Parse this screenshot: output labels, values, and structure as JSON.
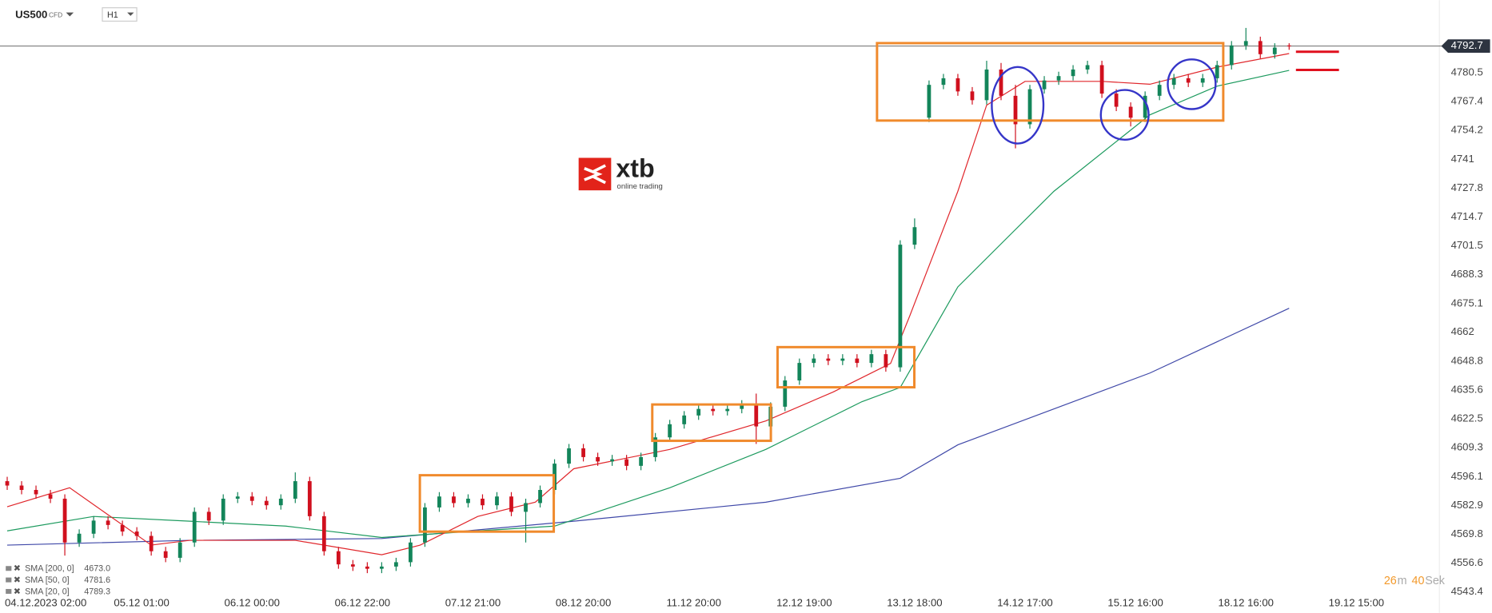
{
  "header": {
    "symbol": "US500",
    "kind": "CFD",
    "interval": "H1"
  },
  "logo": {
    "brand": "xtb",
    "tagline": "online trading"
  },
  "timer": {
    "minutes": "26",
    "minutes_unit": "m",
    "seconds": "40",
    "seconds_unit": "Sek"
  },
  "chart_data": {
    "type": "candlestick",
    "up_color": "#13855a",
    "down_color": "#d0101e",
    "xlim": [
      -6.5,
      292.3
    ],
    "ylim": [
      4541.7,
      4813.7
    ],
    "xticks": [
      {
        "value": 0,
        "label": "04.12.2023  02:00"
      },
      {
        "value": 23,
        "label": "05.12  01:00"
      },
      {
        "value": 46,
        "label": "06.12  00:00"
      },
      {
        "value": 69,
        "label": "06.12  22:00"
      },
      {
        "value": 92,
        "label": "07.12  21:00"
      },
      {
        "value": 115,
        "label": "08.12  20:00"
      },
      {
        "value": 138,
        "label": "11.12  20:00"
      },
      {
        "value": 161,
        "label": "12.12  19:00"
      },
      {
        "value": 184,
        "label": "13.12  18:00"
      },
      {
        "value": 207,
        "label": "14.12  17:00"
      },
      {
        "value": 230,
        "label": "15.12  16:00"
      },
      {
        "value": 253,
        "label": "18.12  16:00"
      },
      {
        "value": 276,
        "label": "19.12  15:00"
      }
    ],
    "yticks": [
      4543.4,
      4556.6,
      4569.8,
      4582.9,
      4596.1,
      4609.3,
      4622.5,
      4635.6,
      4648.8,
      4662.0,
      4675.1,
      4688.3,
      4701.5,
      4714.7,
      4727.8,
      4741.0,
      4754.2,
      4767.4,
      4780.5
    ],
    "last_price": 4792.7,
    "x": [
      -5,
      -2,
      1,
      4,
      7,
      10,
      13,
      16,
      19,
      22,
      25,
      28,
      31,
      34,
      37,
      40,
      43,
      46,
      49,
      52,
      55,
      58,
      61,
      64,
      67,
      70,
      73,
      76,
      79,
      82,
      85,
      88,
      91,
      94,
      97,
      100,
      103,
      106,
      109,
      112,
      115,
      118,
      121,
      124,
      127,
      130,
      133,
      136,
      139,
      142,
      145,
      148,
      151,
      154,
      157,
      160,
      163,
      166,
      169,
      172,
      175,
      178,
      181,
      184,
      187,
      190,
      193,
      196,
      199,
      202,
      205,
      208,
      211,
      214,
      217,
      220,
      223,
      226,
      229,
      232,
      235,
      238,
      241,
      244,
      247,
      250,
      253,
      256,
      259,
      262
    ],
    "open": [
      4594,
      4592,
      4590,
      4588,
      4586,
      4566,
      4570,
      4576,
      4574,
      4571,
      4569,
      4562,
      4559,
      4566,
      4580,
      4576,
      4586,
      4587,
      4585,
      4583,
      4586,
      4594,
      4578,
      4562,
      4556,
      4555,
      4554,
      4555,
      4557,
      4566,
      4582,
      4587,
      4584,
      4586,
      4583,
      4587,
      4580,
      4584,
      4590,
      4602,
      4609,
      4605,
      4603,
      4604,
      4601,
      4605,
      4614,
      4620,
      4624,
      4627,
      4626,
      4627,
      4629,
      4619,
      4628,
      4640,
      4648,
      4650,
      4649,
      4650,
      4648,
      4652,
      4646,
      4702,
      4760,
      4775,
      4778,
      4772,
      4768,
      4782,
      4770,
      4757,
      4773,
      4777,
      4779,
      4782,
      4784,
      4771,
      4765,
      4760,
      4770,
      4775,
      4778,
      4776,
      4778,
      4784,
      4793,
      4795,
      4789,
      4793
    ],
    "high": [
      4596,
      4594,
      4592,
      4590,
      4588,
      4572,
      4578,
      4578,
      4576,
      4573,
      4571,
      4564,
      4568,
      4582,
      4582,
      4588,
      4589,
      4589,
      4587,
      4588,
      4598,
      4596,
      4580,
      4564,
      4558,
      4557,
      4557,
      4559,
      4568,
      4584,
      4589,
      4589,
      4588,
      4588,
      4589,
      4589,
      4586,
      4592,
      4604,
      4611,
      4611,
      4607,
      4606,
      4606,
      4607,
      4616,
      4622,
      4626,
      4629,
      4629,
      4629,
      4631,
      4634,
      4630,
      4642,
      4650,
      4652,
      4652,
      4652,
      4652,
      4654,
      4654,
      4704,
      4714,
      4777,
      4780,
      4780,
      4774,
      4786,
      4785,
      4775,
      4775,
      4779,
      4781,
      4784,
      4786,
      4786,
      4773,
      4767,
      4772,
      4777,
      4780,
      4780,
      4780,
      4786,
      4795,
      4801,
      4797,
      4794,
      4794
    ],
    "low": [
      4590,
      4588,
      4586,
      4584,
      4560,
      4564,
      4568,
      4572,
      4569,
      4567,
      4560,
      4557,
      4557,
      4564,
      4574,
      4574,
      4584,
      4583,
      4581,
      4581,
      4584,
      4576,
      4560,
      4554,
      4553,
      4552,
      4552,
      4553,
      4555,
      4564,
      4580,
      4582,
      4582,
      4581,
      4581,
      4578,
      4566,
      4582,
      4588,
      4600,
      4603,
      4601,
      4601,
      4599,
      4599,
      4603,
      4612,
      4618,
      4622,
      4624,
      4624,
      4625,
      4611,
      4617,
      4626,
      4638,
      4646,
      4647,
      4647,
      4646,
      4646,
      4644,
      4644,
      4700,
      4758,
      4773,
      4770,
      4766,
      4766,
      4768,
      4746,
      4755,
      4771,
      4775,
      4777,
      4780,
      4769,
      4763,
      4756,
      4758,
      4768,
      4773,
      4774,
      4774,
      4776,
      4782,
      4791,
      4787,
      4787,
      4791
    ],
    "close": [
      4592,
      4590,
      4588,
      4586,
      4566,
      4570,
      4576,
      4574,
      4571,
      4569,
      4562,
      4559,
      4566,
      4580,
      4576,
      4586,
      4587,
      4585,
      4583,
      4586,
      4594,
      4578,
      4562,
      4556,
      4555,
      4554,
      4555,
      4557,
      4566,
      4582,
      4587,
      4584,
      4586,
      4583,
      4587,
      4580,
      4584,
      4590,
      4602,
      4609,
      4605,
      4603,
      4604,
      4601,
      4605,
      4614,
      4620,
      4624,
      4627,
      4626,
      4627,
      4629,
      4619,
      4628,
      4640,
      4648,
      4650,
      4649,
      4650,
      4648,
      4652,
      4646,
      4702,
      4710,
      4775,
      4778,
      4772,
      4768,
      4782,
      4770,
      4757,
      4773,
      4777,
      4779,
      4782,
      4784,
      4771,
      4765,
      4760,
      4770,
      4775,
      4778,
      4776,
      4778,
      4784,
      4793,
      4795,
      4789,
      4792,
      4792.7
    ],
    "overlays": [
      {
        "type": "line",
        "name": "SMA [200,  0]",
        "color": "#3f48a8",
        "x": [
          -5,
          33,
          73,
          113,
          153,
          181,
          193,
          233,
          262
        ],
        "values": [
          4564.8,
          4567.0,
          4567.8,
          4575.7,
          4584.4,
          4595.3,
          4610.6,
          4643.4,
          4673.0
        ],
        "legend_value": {
          "value": 4673,
          "label": "4673.0"
        }
      },
      {
        "type": "line",
        "name": "SMA [50,  0]",
        "color": "#1c9a5e",
        "x": [
          -5,
          13,
          33,
          53,
          73,
          93,
          109,
          133,
          153,
          173,
          181,
          193,
          213,
          233,
          247,
          262
        ],
        "values": [
          4571.3,
          4577.9,
          4575.7,
          4573.5,
          4568.3,
          4571.3,
          4573.5,
          4591.0,
          4608.5,
          4630.3,
          4636.8,
          4682.7,
          4726.4,
          4761.3,
          4774.4,
          4781.6
        ],
        "legend_value": 4781.6
      },
      {
        "type": "line",
        "name": "SMA [20,  0]",
        "color": "#e0262b",
        "x": [
          -5,
          8,
          25,
          33,
          55,
          73,
          81,
          93,
          105,
          113,
          133,
          153,
          167,
          179,
          183,
          193,
          199,
          207,
          223,
          233,
          247,
          262
        ],
        "values": [
          4582.3,
          4591.0,
          4564.8,
          4567.0,
          4567.0,
          4560.4,
          4564.8,
          4577.9,
          4584.4,
          4599.7,
          4608.5,
          4621.5,
          4634.7,
          4647.8,
          4669.6,
          4726.4,
          4765.7,
          4776.6,
          4776.6,
          4775.3,
          4783.1,
          4789.3
        ],
        "legend_value": 4789.3
      }
    ]
  }
}
